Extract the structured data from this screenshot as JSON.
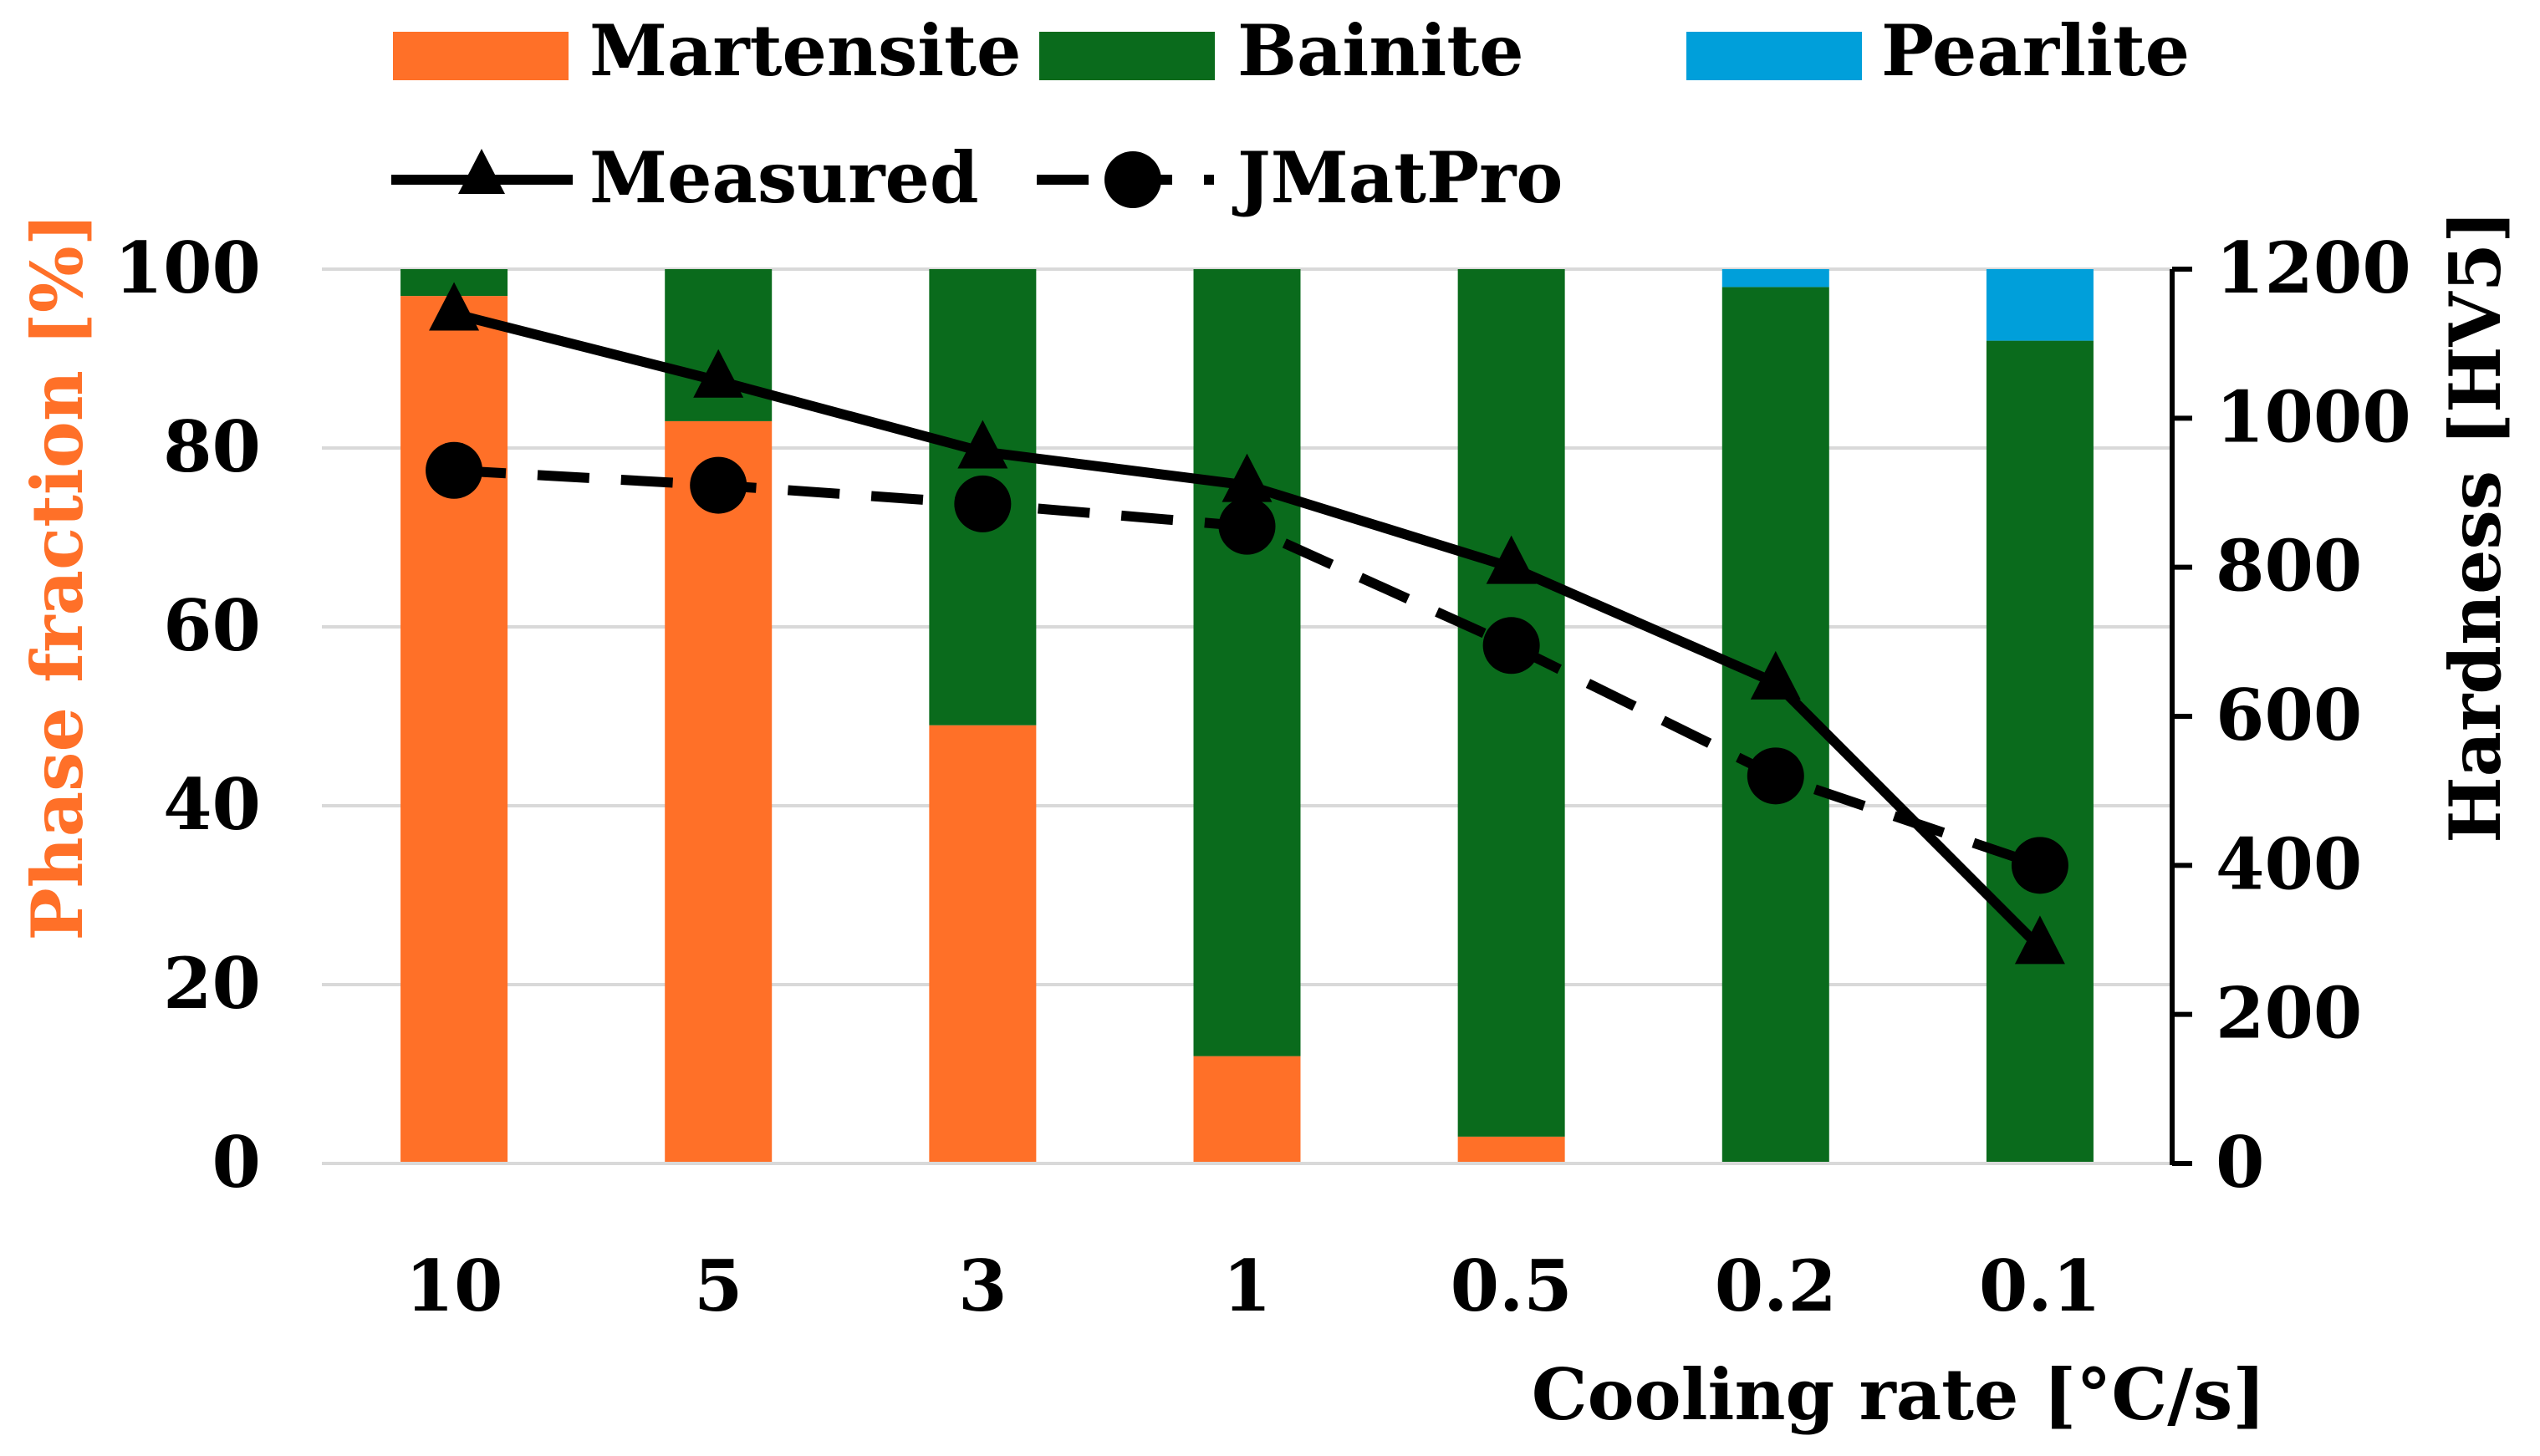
{
  "chart_data": {
    "type": "bar",
    "stacked": true,
    "categories": [
      "10",
      "5",
      "3",
      "1",
      "0.5",
      "0.2",
      "0.1"
    ],
    "series": [
      {
        "name": "Martensite",
        "axis": "left",
        "color": "#ff7028",
        "values": [
          97,
          83,
          49,
          12,
          3,
          0,
          0
        ]
      },
      {
        "name": "Bainite",
        "axis": "left",
        "color": "#0a6b1c",
        "values": [
          3,
          17,
          51,
          88,
          97,
          98,
          92
        ]
      },
      {
        "name": "Pearlite",
        "axis": "left",
        "color": "#009fda",
        "values": [
          0,
          0,
          0,
          0,
          0,
          2,
          8
        ]
      }
    ],
    "line_series": [
      {
        "name": "Measured",
        "type": "line",
        "axis": "right",
        "style": "solid",
        "marker": "triangle",
        "color": "#000000",
        "values": [
          1140,
          1050,
          955,
          910,
          800,
          645,
          290
        ]
      },
      {
        "name": "JMatPro",
        "type": "line",
        "axis": "right",
        "style": "dashed",
        "marker": "circle",
        "color": "#000000",
        "values": [
          930,
          910,
          885,
          855,
          695,
          520,
          400
        ]
      }
    ],
    "xlabel": "Cooling rate [°C/s]",
    "ylabel": "Phase fraction [%]",
    "ylabel_color": "#ff7028",
    "y2label": "Hardness [HV5]",
    "ylim": [
      0,
      100
    ],
    "yticks": [
      "0",
      "20",
      "40",
      "60",
      "80",
      "100"
    ],
    "y2lim": [
      0,
      1200
    ],
    "y2ticks": [
      "0",
      "200",
      "400",
      "600",
      "800",
      "1000",
      "1200"
    ],
    "grid": "horizontal",
    "legend_position": "top"
  }
}
